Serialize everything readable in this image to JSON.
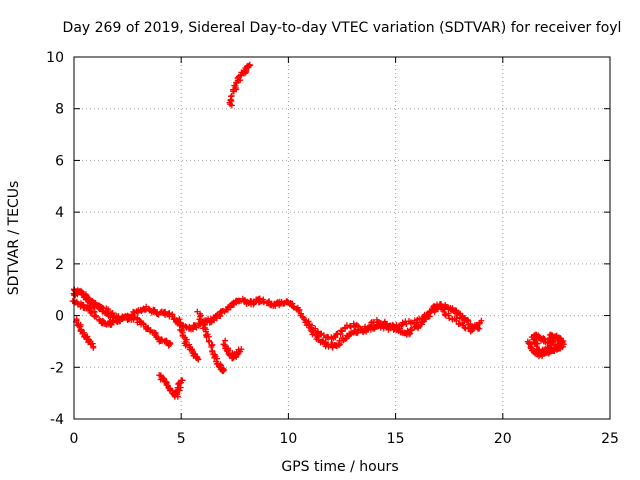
{
  "chart_data": {
    "type": "scatter",
    "title": "Day 269 of 2019, Sidereal Day-to-day VTEC variation (SDTVAR) for receiver foyl",
    "xlabel": "GPS time / hours",
    "ylabel": "SDTVAR / TECUs",
    "xlim": [
      0,
      25
    ],
    "ylim": [
      -4,
      10
    ],
    "xticks": [
      "0",
      "5",
      "10",
      "15",
      "20",
      "25"
    ],
    "yticks": [
      "-4",
      "-2",
      "0",
      "2",
      "4",
      "6",
      "8",
      "10"
    ],
    "grid": true,
    "marker": "+",
    "series": [
      {
        "name": "SDTVAR",
        "color": "#ff0000",
        "tracks": [
          [
            [
              0.0,
              0.8
            ],
            [
              0.3,
              0.9
            ],
            [
              0.6,
              0.7
            ],
            [
              0.9,
              0.5
            ],
            [
              1.2,
              0.3
            ],
            [
              1.5,
              0.1
            ],
            [
              1.8,
              0.0
            ],
            [
              2.1,
              -0.1
            ],
            [
              2.4,
              -0.1
            ],
            [
              2.7,
              0.0
            ],
            [
              3.0,
              0.2
            ],
            [
              3.3,
              0.3
            ],
            [
              3.6,
              0.2
            ],
            [
              3.9,
              0.1
            ],
            [
              4.2,
              0.1
            ],
            [
              4.5,
              0.0
            ],
            [
              4.8,
              -0.2
            ],
            [
              5.1,
              -0.4
            ],
            [
              5.4,
              -0.5
            ],
            [
              5.7,
              -0.4
            ],
            [
              6.0,
              -0.3
            ],
            [
              6.3,
              -0.2
            ],
            [
              6.6,
              -0.1
            ],
            [
              6.9,
              0.1
            ],
            [
              7.2,
              0.3
            ],
            [
              7.5,
              0.5
            ],
            [
              7.8,
              0.6
            ],
            [
              8.1,
              0.5
            ],
            [
              8.4,
              0.5
            ],
            [
              8.7,
              0.6
            ],
            [
              9.0,
              0.5
            ],
            [
              9.3,
              0.4
            ],
            [
              9.6,
              0.5
            ],
            [
              9.9,
              0.5
            ],
            [
              10.2,
              0.4
            ],
            [
              10.5,
              0.2
            ],
            [
              10.8,
              -0.2
            ],
            [
              11.1,
              -0.6
            ],
            [
              11.4,
              -0.9
            ],
            [
              11.7,
              -1.1
            ],
            [
              12.0,
              -1.2
            ],
            [
              12.3,
              -1.1
            ],
            [
              12.6,
              -0.9
            ],
            [
              12.9,
              -0.7
            ],
            [
              13.2,
              -0.6
            ],
            [
              13.5,
              -0.6
            ],
            [
              13.8,
              -0.5
            ],
            [
              14.1,
              -0.4
            ],
            [
              14.4,
              -0.3
            ],
            [
              14.7,
              -0.4
            ],
            [
              15.0,
              -0.5
            ],
            [
              15.3,
              -0.6
            ],
            [
              15.6,
              -0.7
            ],
            [
              15.9,
              -0.5
            ],
            [
              16.2,
              -0.3
            ],
            [
              16.5,
              0.0
            ],
            [
              16.8,
              0.3
            ],
            [
              17.1,
              0.4
            ],
            [
              17.4,
              0.3
            ],
            [
              17.7,
              0.2
            ],
            [
              18.0,
              0.0
            ],
            [
              18.3,
              -0.2
            ],
            [
              18.6,
              -0.4
            ],
            [
              18.9,
              -0.5
            ]
          ],
          [
            [
              0.0,
              0.5
            ],
            [
              0.3,
              0.4
            ],
            [
              0.6,
              0.3
            ],
            [
              0.9,
              0.1
            ],
            [
              1.2,
              -0.2
            ],
            [
              1.5,
              -0.3
            ],
            [
              1.8,
              -0.3
            ],
            [
              2.1,
              -0.2
            ],
            [
              2.4,
              -0.1
            ],
            [
              2.7,
              -0.1
            ],
            [
              3.0,
              -0.2
            ],
            [
              3.3,
              -0.4
            ],
            [
              3.6,
              -0.6
            ],
            [
              3.9,
              -0.9
            ],
            [
              4.2,
              -1.0
            ],
            [
              4.5,
              -1.1
            ]
          ],
          [
            [
              0.0,
              1.0
            ],
            [
              0.3,
              0.9
            ],
            [
              0.6,
              0.6
            ],
            [
              0.9,
              0.4
            ],
            [
              1.2,
              0.3
            ],
            [
              1.5,
              0.2
            ],
            [
              1.8,
              0.1
            ]
          ],
          [
            [
              4.9,
              -0.2
            ],
            [
              5.0,
              -0.6
            ],
            [
              5.2,
              -1.0
            ],
            [
              5.4,
              -1.3
            ],
            [
              5.6,
              -1.5
            ],
            [
              5.8,
              -1.7
            ]
          ],
          [
            [
              5.8,
              0.1
            ],
            [
              6.0,
              -0.3
            ],
            [
              6.2,
              -0.7
            ],
            [
              6.4,
              -1.2
            ],
            [
              6.6,
              -1.7
            ],
            [
              6.8,
              -2.0
            ],
            [
              7.0,
              -2.1
            ]
          ],
          [
            [
              7.0,
              -1.0
            ],
            [
              7.2,
              -1.4
            ],
            [
              7.4,
              -1.6
            ],
            [
              7.6,
              -1.5
            ],
            [
              7.8,
              -1.3
            ]
          ],
          [
            [
              0.1,
              -0.2
            ],
            [
              0.3,
              -0.5
            ],
            [
              0.5,
              -0.8
            ],
            [
              0.7,
              -1.0
            ],
            [
              0.9,
              -1.2
            ]
          ],
          [
            [
              4.0,
              -2.3
            ],
            [
              4.2,
              -2.5
            ],
            [
              4.4,
              -2.7
            ],
            [
              4.6,
              -3.0
            ],
            [
              4.8,
              -3.1
            ],
            [
              4.9,
              -2.8
            ],
            [
              5.0,
              -2.5
            ]
          ],
          [
            [
              7.3,
              8.1
            ],
            [
              7.4,
              8.6
            ],
            [
              7.6,
              9.0
            ],
            [
              7.8,
              9.3
            ],
            [
              8.0,
              9.5
            ],
            [
              8.2,
              9.7
            ]
          ],
          [
            [
              11.0,
              -0.4
            ],
            [
              11.5,
              -0.7
            ],
            [
              12.0,
              -0.9
            ],
            [
              12.5,
              -0.6
            ],
            [
              13.0,
              -0.3
            ],
            [
              13.5,
              -0.6
            ],
            [
              14.0,
              -0.2
            ],
            [
              14.5,
              -0.5
            ],
            [
              15.0,
              -0.4
            ],
            [
              15.5,
              -0.3
            ],
            [
              16.0,
              -0.2
            ],
            [
              16.5,
              0.1
            ],
            [
              17.0,
              0.3
            ],
            [
              17.5,
              0.0
            ],
            [
              18.0,
              -0.3
            ],
            [
              18.5,
              -0.6
            ],
            [
              19.0,
              -0.2
            ]
          ],
          [
            [
              21.2,
              -1.0
            ],
            [
              21.4,
              -1.3
            ],
            [
              21.6,
              -1.5
            ],
            [
              21.8,
              -1.5
            ],
            [
              22.0,
              -1.4
            ],
            [
              22.2,
              -1.2
            ],
            [
              22.3,
              -1.0
            ],
            [
              22.2,
              -0.8
            ],
            [
              22.4,
              -0.8
            ],
            [
              22.6,
              -0.9
            ],
            [
              22.8,
              -1.0
            ],
            [
              22.7,
              -1.2
            ],
            [
              22.5,
              -1.3
            ],
            [
              22.2,
              -1.4
            ],
            [
              21.9,
              -1.4
            ],
            [
              21.6,
              -1.2
            ],
            [
              21.4,
              -0.9
            ],
            [
              21.6,
              -0.8
            ],
            [
              21.8,
              -0.9
            ],
            [
              22.0,
              -1.0
            ],
            [
              22.6,
              -1.1
            ],
            [
              22.8,
              -1.2
            ]
          ]
        ]
      }
    ]
  }
}
